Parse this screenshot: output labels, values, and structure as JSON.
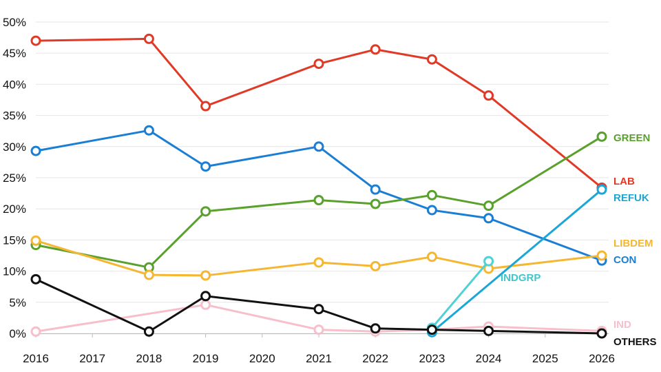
{
  "chart_data": {
    "type": "line",
    "title": "",
    "xlabel": "",
    "ylabel": "",
    "x_ticks": [
      "2016",
      "2017",
      "2018",
      "2019",
      "2020",
      "2021",
      "2022",
      "2023",
      "2024",
      "2025",
      "2026"
    ],
    "y_ticks": [
      "0%",
      "5%",
      "10%",
      "15%",
      "20%",
      "25%",
      "30%",
      "35%",
      "40%",
      "45%",
      "50%"
    ],
    "xlim": [
      2016,
      2026
    ],
    "ylim": [
      0,
      50
    ],
    "grid": true,
    "series": [
      {
        "name": "LAB",
        "color": "#e03a26",
        "points": [
          [
            2016,
            47.0
          ],
          [
            2018,
            47.3
          ],
          [
            2019,
            36.5
          ],
          [
            2021,
            43.3
          ],
          [
            2022,
            45.6
          ],
          [
            2023,
            44.0
          ],
          [
            2024,
            38.2
          ],
          [
            2026,
            23.4
          ]
        ]
      },
      {
        "name": "CON",
        "color": "#1a7fd4",
        "points": [
          [
            2016,
            29.3
          ],
          [
            2018,
            32.6
          ],
          [
            2019,
            26.8
          ],
          [
            2021,
            30.0
          ],
          [
            2022,
            23.1
          ],
          [
            2023,
            19.8
          ],
          [
            2024,
            18.5
          ],
          [
            2026,
            11.7
          ]
        ]
      },
      {
        "name": "GREEN",
        "color": "#5aa02c",
        "points": [
          [
            2016,
            14.2
          ],
          [
            2018,
            10.6
          ],
          [
            2019,
            19.6
          ],
          [
            2021,
            21.4
          ],
          [
            2022,
            20.8
          ],
          [
            2023,
            22.2
          ],
          [
            2024,
            20.5
          ],
          [
            2026,
            31.6
          ]
        ]
      },
      {
        "name": "LIBDEM",
        "color": "#f5b731",
        "points": [
          [
            2016,
            14.9
          ],
          [
            2018,
            9.4
          ],
          [
            2019,
            9.3
          ],
          [
            2021,
            11.4
          ],
          [
            2022,
            10.8
          ],
          [
            2023,
            12.3
          ],
          [
            2024,
            10.4
          ],
          [
            2026,
            12.5
          ]
        ]
      },
      {
        "name": "REFUK",
        "color": "#1aa7d6",
        "points": [
          [
            2023,
            0.2
          ],
          [
            2026,
            23.1
          ]
        ]
      },
      {
        "name": "INDGRP",
        "color": "#4fd1d6",
        "points": [
          [
            2023,
            0.9
          ],
          [
            2024,
            11.6
          ]
        ]
      },
      {
        "name": "IND",
        "color": "#f7bfcb",
        "points": [
          [
            2016,
            0.3
          ],
          [
            2019,
            4.6
          ],
          [
            2021,
            0.6
          ],
          [
            2022,
            0.3
          ],
          [
            2023,
            0.6
          ],
          [
            2024,
            1.1
          ],
          [
            2026,
            0.4
          ]
        ]
      },
      {
        "name": "OTHERS",
        "color": "#111111",
        "points": [
          [
            2016,
            8.7
          ],
          [
            2018,
            0.3
          ],
          [
            2019,
            6.0
          ],
          [
            2021,
            3.9
          ],
          [
            2022,
            0.8
          ],
          [
            2023,
            0.6
          ],
          [
            2024,
            0.4
          ],
          [
            2026,
            0.0
          ]
        ]
      }
    ]
  }
}
